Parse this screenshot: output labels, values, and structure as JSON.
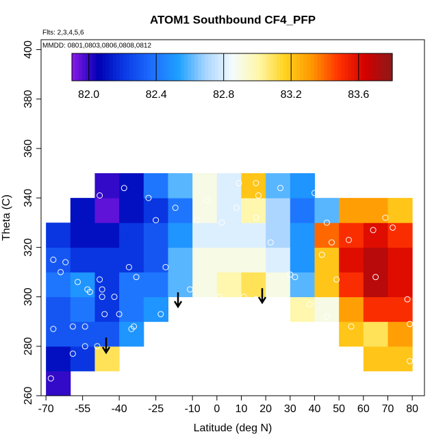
{
  "chart_data": {
    "type": "heatmap",
    "title": "ATOM1 Southbound CF4_PFP",
    "subtitle": "Flts: 2,3,4,5,6",
    "annotation": "MMDD: 0801,0803,0806,0808,0812",
    "x_label": "Latitude (deg N)",
    "y_label": "Theta (C)",
    "xlim": [
      -72,
      85
    ],
    "ylim": [
      260,
      404
    ],
    "xticks": [
      -70,
      -55,
      -40,
      -25,
      -10,
      0,
      10,
      20,
      30,
      40,
      50,
      60,
      70,
      80
    ],
    "yticks": [
      260,
      280,
      300,
      320,
      340,
      360,
      380,
      400
    ],
    "x": [
      -65,
      -55,
      -45,
      -35,
      -25,
      -15,
      -5,
      5,
      15,
      25,
      35,
      45,
      55,
      65,
      75
    ],
    "y": [
      265,
      275,
      285,
      295,
      305,
      315,
      325,
      335,
      345
    ],
    "z": [
      [
        82.0,
        null,
        null,
        null,
        null,
        null,
        null,
        null,
        null,
        null,
        null,
        null,
        null,
        null,
        null
      ],
      [
        82.1,
        82.2,
        83.1,
        null,
        null,
        null,
        null,
        null,
        null,
        null,
        null,
        null,
        null,
        83.2,
        83.2
      ],
      [
        82.3,
        82.3,
        82.3,
        82.5,
        null,
        null,
        null,
        null,
        null,
        null,
        null,
        null,
        83.2,
        83.1,
        83.3
      ],
      [
        82.3,
        82.4,
        82.2,
        82.4,
        82.5,
        null,
        null,
        null,
        null,
        null,
        83.0,
        82.9,
        83.3,
        83.5,
        83.5
      ],
      [
        82.4,
        82.5,
        82.2,
        82.4,
        82.4,
        82.6,
        82.9,
        83.0,
        83.1,
        82.9,
        82.6,
        83.2,
        83.5,
        83.7,
        83.6
      ],
      [
        82.3,
        82.2,
        82.2,
        82.2,
        82.3,
        82.6,
        82.9,
        82.9,
        82.9,
        82.8,
        82.5,
        83.2,
        83.6,
        83.7,
        83.6
      ],
      [
        82.2,
        82.1,
        82.1,
        82.2,
        82.3,
        82.5,
        82.8,
        82.8,
        82.8,
        82.7,
        82.5,
        83.4,
        83.5,
        83.6,
        83.5
      ],
      [
        null,
        82.1,
        81.95,
        82.1,
        82.2,
        82.4,
        82.9,
        82.8,
        83.0,
        82.7,
        82.4,
        82.6,
        83.3,
        83.3,
        83.2
      ],
      [
        null,
        null,
        82.0,
        82.1,
        82.4,
        82.6,
        82.9,
        82.8,
        83.2,
        82.6,
        82.5,
        null,
        null,
        null,
        null
      ]
    ],
    "palette": [
      "#8b1ae8",
      "#0000b4",
      "#0a3ce6",
      "#1e6eff",
      "#1ea0ff",
      "#a8d4ff",
      "#f4fbff",
      "#fff7a8",
      "#ffd21e",
      "#ff9600",
      "#ff3200",
      "#d20000",
      "#8b1a1a"
    ],
    "colorbar": {
      "zlim": [
        81.9,
        83.8
      ],
      "ticks": [
        {
          "value": 82,
          "label": "82.0"
        },
        82.4,
        82.8,
        83.2,
        83.6
      ]
    },
    "points": {
      "color": "#ffffff",
      "x": [
        -48,
        -38,
        -28,
        -17,
        -25,
        9,
        16,
        17,
        26,
        40,
        -8,
        8,
        16,
        22,
        45,
        54,
        64,
        72,
        69,
        47,
        43,
        65,
        30,
        49,
        78,
        79,
        79,
        55,
        45,
        38,
        -62,
        -67,
        -64,
        -57,
        -53,
        -48,
        -52,
        -47,
        -47,
        -46,
        -40,
        -42,
        -33,
        -36,
        -21,
        -34,
        -35,
        -54,
        -59,
        -54,
        -67,
        -59,
        -49,
        -68,
        -23,
        -11,
        1,
        11,
        25,
        16,
        32,
        2,
        -4
      ],
      "y": [
        341,
        344,
        340,
        336,
        331,
        346,
        346,
        341,
        344,
        342,
        331,
        336,
        332,
        322,
        330,
        323,
        327,
        328,
        332,
        322,
        317,
        308,
        309,
        307,
        299,
        289,
        274,
        288,
        292,
        297,
        314,
        315,
        310,
        306,
        303,
        307,
        302,
        303,
        300,
        293,
        293,
        300,
        308,
        312,
        312,
        288,
        287,
        288,
        288,
        280,
        287,
        277,
        280,
        267,
        293,
        303,
        300,
        300,
        292,
        299,
        308,
        330,
        339
      ]
    }
  }
}
